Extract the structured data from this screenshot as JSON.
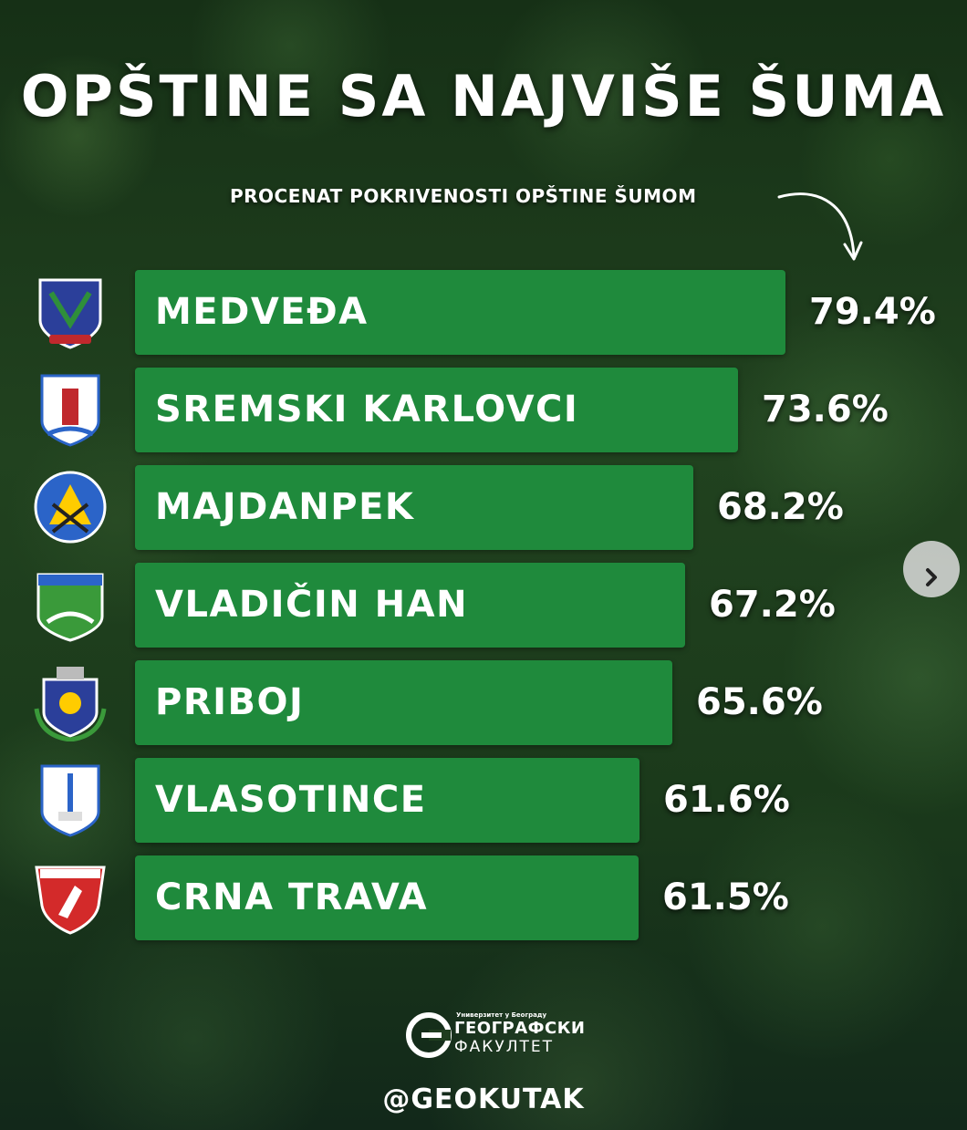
{
  "chart_data": {
    "type": "bar",
    "orientation": "horizontal",
    "title": "OPŠTINE SA NAJVIŠE ŠUMA",
    "subtitle": "PROCENAT POKRIVENOSTI OPŠTINE ŠUMOM",
    "categories": [
      "MEDVEĐA",
      "SREMSKI KARLOVCI",
      "MAJDANPEK",
      "VLADIČIN HAN",
      "PRIBOJ",
      "VLASOTINCE",
      "CRNA TRAVA"
    ],
    "values": [
      79.4,
      73.6,
      68.2,
      67.2,
      65.6,
      61.6,
      61.5
    ],
    "value_labels": [
      "79.4%",
      "73.6%",
      "68.2%",
      "67.2%",
      "65.6%",
      "61.6%",
      "61.5%"
    ],
    "unit": "%",
    "grid": false,
    "bar_color": "#1f8a3c"
  },
  "crests": [
    {
      "name": "medvedja-crest-icon",
      "colors": [
        "#2b3f9a",
        "#2f8f3a",
        "#c0282d"
      ]
    },
    {
      "name": "sremski-karlovci-crest-icon",
      "colors": [
        "#2b64c8",
        "#ffffff",
        "#c0282d"
      ]
    },
    {
      "name": "majdanpek-crest-icon",
      "colors": [
        "#2b64c8",
        "#ffcc00",
        "#c0282d"
      ]
    },
    {
      "name": "vladicin-han-crest-icon",
      "colors": [
        "#3a9a3a",
        "#ffffff",
        "#2b64c8"
      ]
    },
    {
      "name": "priboj-crest-icon",
      "colors": [
        "#2b3f9a",
        "#ffcc00",
        "#3a9a3a"
      ]
    },
    {
      "name": "vlasotince-crest-icon",
      "colors": [
        "#2b64c8",
        "#ffffff",
        "#dddddd"
      ]
    },
    {
      "name": "crna-trava-crest-icon",
      "colors": [
        "#d32a2a",
        "#ffffff"
      ]
    }
  ],
  "logo": {
    "small_text": "Универзитет у Београду",
    "name": "ГЕОГРАФСКИ",
    "sub": "ФАКУЛТЕТ"
  },
  "handle": "@GEOKUTAK"
}
